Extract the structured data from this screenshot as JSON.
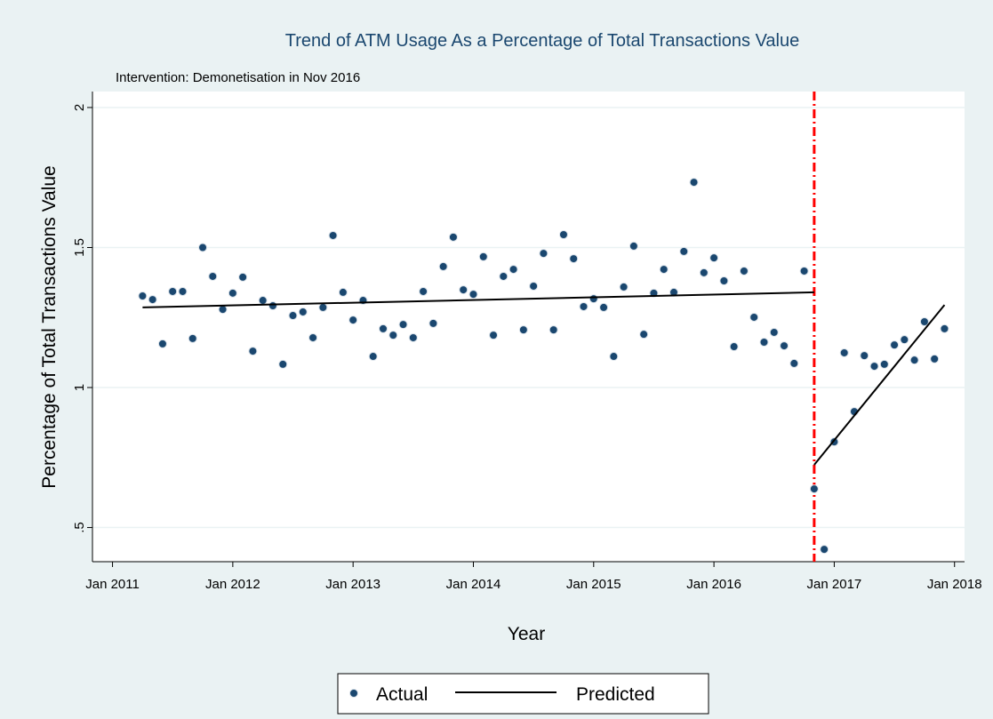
{
  "chart_data": {
    "type": "scatter",
    "title": "Trend of ATM Usage As a Percentage of Total Transactions Value",
    "subtitle": "Intervention: Demonetisation in Nov 2016",
    "x_label": "Year",
    "y_label": "Percentage of Total Transactions Value",
    "xlim": [
      "2010-11",
      "2018-02"
    ],
    "xticks": [
      {
        "value": "2011-01",
        "label": "Jan 2011"
      },
      {
        "value": "2012-01",
        "label": "Jan 2012"
      },
      {
        "value": "2013-01",
        "label": "Jan 2013"
      },
      {
        "value": "2014-01",
        "label": "Jan 2014"
      },
      {
        "value": "2015-01",
        "label": "Jan 2015"
      },
      {
        "value": "2016-01",
        "label": "Jan 2016"
      },
      {
        "value": "2017-01",
        "label": "Jan 2017"
      },
      {
        "value": "2018-01",
        "label": "Jan 2018"
      }
    ],
    "ylim": [
      0.378,
      2.057
    ],
    "yticks": [
      {
        "value": 0.5,
        "label": ".5"
      },
      1,
      1.5,
      2
    ],
    "grid": true,
    "intervention_x": "2016-11",
    "intervention_color": "#ff0000",
    "series": [
      {
        "name": "Actual",
        "style": "marker",
        "color": "#1a476f",
        "x": [
          "2011-04",
          "2011-05",
          "2011-06",
          "2011-07",
          "2011-08",
          "2011-09",
          "2011-10",
          "2011-11",
          "2011-12",
          "2012-01",
          "2012-02",
          "2012-03",
          "2012-04",
          "2012-05",
          "2012-06",
          "2012-07",
          "2012-08",
          "2012-09",
          "2012-10",
          "2012-11",
          "2012-12",
          "2013-01",
          "2013-02",
          "2013-03",
          "2013-04",
          "2013-05",
          "2013-06",
          "2013-07",
          "2013-08",
          "2013-09",
          "2013-10",
          "2013-11",
          "2013-12",
          "2014-01",
          "2014-02",
          "2014-03",
          "2014-04",
          "2014-05",
          "2014-06",
          "2014-07",
          "2014-08",
          "2014-09",
          "2014-10",
          "2014-11",
          "2014-12",
          "2015-01",
          "2015-02",
          "2015-03",
          "2015-04",
          "2015-05",
          "2015-06",
          "2015-07",
          "2015-08",
          "2015-09",
          "2015-10",
          "2015-11",
          "2015-12",
          "2016-01",
          "2016-02",
          "2016-03",
          "2016-04",
          "2016-05",
          "2016-06",
          "2016-07",
          "2016-08",
          "2016-09",
          "2016-10",
          "2016-11",
          "2016-12",
          "2017-01",
          "2017-02",
          "2017-03",
          "2017-04",
          "2017-05",
          "2017-06",
          "2017-07",
          "2017-08",
          "2017-09",
          "2017-10",
          "2017-11",
          "2017-12"
        ],
        "values": [
          1.327,
          1.314,
          1.156,
          1.343,
          1.343,
          1.175,
          1.5,
          1.397,
          1.279,
          1.337,
          1.394,
          1.13,
          1.311,
          1.292,
          1.083,
          1.257,
          1.27,
          1.178,
          1.286,
          1.543,
          1.34,
          1.241,
          1.311,
          1.111,
          1.21,
          1.187,
          1.225,
          1.178,
          1.343,
          1.229,
          1.432,
          1.537,
          1.349,
          1.333,
          1.467,
          1.187,
          1.397,
          1.422,
          1.206,
          1.362,
          1.479,
          1.206,
          1.546,
          1.46,
          1.289,
          1.317,
          1.286,
          1.111,
          1.359,
          1.505,
          1.19,
          1.337,
          1.422,
          1.34,
          1.486,
          1.733,
          1.41,
          1.463,
          1.381,
          1.146,
          1.416,
          1.251,
          1.162,
          1.197,
          1.149,
          1.086,
          1.416,
          0.638,
          0.422,
          0.806,
          1.124,
          0.914,
          1.114,
          1.076,
          1.083,
          1.152,
          1.171,
          1.098,
          1.235,
          1.102,
          1.21
        ]
      },
      {
        "name": "Predicted",
        "style": "line",
        "color": "#000000",
        "x": [
          "2011-04",
          "2016-11",
          "2016-11",
          "2016-11",
          "2017-12"
        ],
        "values": [
          1.286,
          1.34,
          null,
          0.724,
          1.295
        ]
      }
    ]
  }
}
